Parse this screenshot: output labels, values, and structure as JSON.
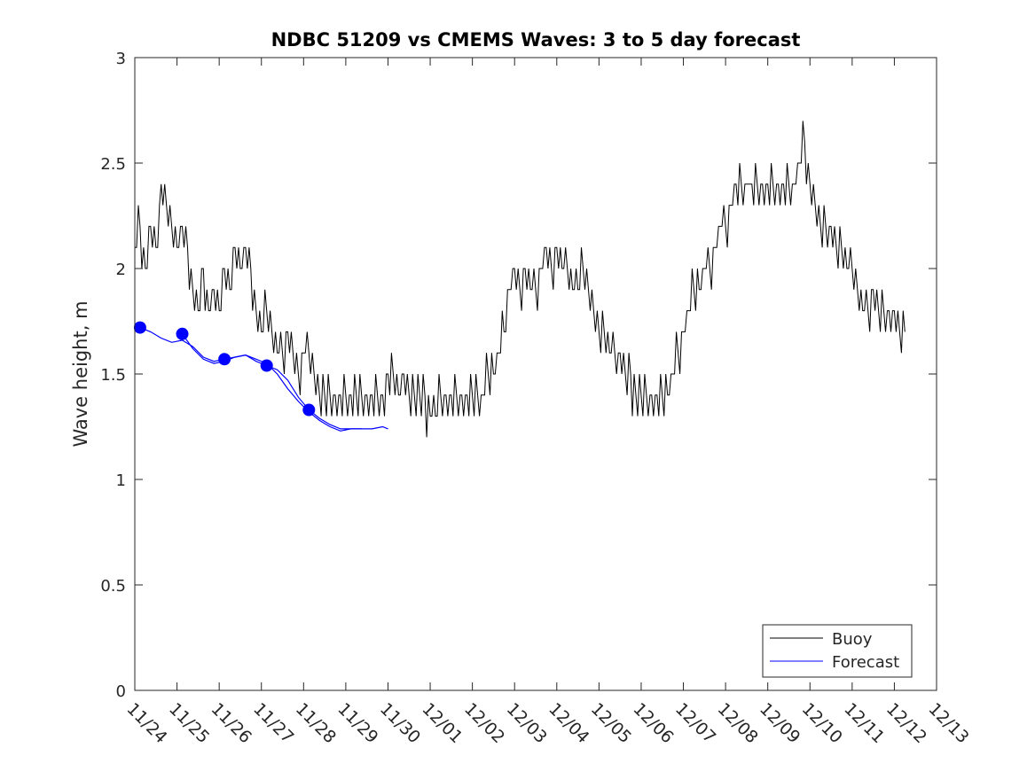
{
  "chart_data": {
    "type": "line",
    "title": "NDBC 51209 vs CMEMS Waves: 3 to 5 day forecast",
    "xlabel": "",
    "ylabel": "Wave height, m",
    "xlim": [
      "2024-11-24",
      "2024-12-13"
    ],
    "ylim": [
      0,
      3
    ],
    "x_ticks": [
      "11/24",
      "11/25",
      "11/26",
      "11/27",
      "11/28",
      "11/29",
      "11/30",
      "12/01",
      "12/02",
      "12/03",
      "12/04",
      "12/05",
      "12/06",
      "12/07",
      "12/08",
      "12/09",
      "12/10",
      "12/11",
      "12/12",
      "12/13"
    ],
    "y_ticks": [
      "0",
      "0.5",
      "1",
      "1.5",
      "2",
      "2.5",
      "3"
    ],
    "grid": false,
    "legend_position": "bottom-right",
    "series": [
      {
        "name": "Buoy",
        "color": "#000000",
        "style": "line",
        "x": [
          "11/24 00:00",
          "11/24 03:00",
          "11/24 06:00",
          "11/24 09:00",
          "11/24 12:00",
          "11/24 15:00",
          "11/24 18:00",
          "11/24 21:00",
          "11/25 00:00",
          "11/25 03:00",
          "11/25 06:00",
          "11/25 09:00",
          "11/25 12:00",
          "11/25 15:00",
          "11/25 18:00",
          "11/25 21:00",
          "11/26 00:00",
          "11/26 03:00",
          "11/26 06:00",
          "11/26 09:00",
          "11/26 12:00",
          "11/26 15:00",
          "11/26 18:00",
          "11/26 21:00",
          "11/27 00:00",
          "11/27 03:00",
          "11/27 06:00",
          "11/27 09:00",
          "11/27 12:00",
          "11/27 15:00",
          "11/27 18:00",
          "11/27 21:00",
          "11/28 00:00",
          "11/28 03:00",
          "11/28 06:00",
          "11/28 09:00",
          "11/28 12:00",
          "11/28 15:00",
          "11/28 18:00",
          "11/28 21:00",
          "11/29 00:00",
          "11/29 03:00",
          "11/29 06:00",
          "11/29 09:00",
          "11/29 12:00",
          "11/29 15:00",
          "11/29 18:00",
          "11/29 21:00",
          "11/30 00:00",
          "11/30 03:00",
          "11/30 06:00",
          "11/30 09:00",
          "11/30 12:00",
          "11/30 15:00",
          "11/30 18:00",
          "11/30 21:00",
          "12/01 00:00",
          "12/01 03:00",
          "12/01 06:00",
          "12/01 09:00",
          "12/01 12:00",
          "12/01 15:00",
          "12/01 18:00",
          "12/01 21:00",
          "12/02 00:00",
          "12/02 03:00",
          "12/02 06:00",
          "12/02 09:00",
          "12/02 12:00",
          "12/02 15:00",
          "12/02 18:00",
          "12/02 21:00",
          "12/03 00:00",
          "12/03 03:00",
          "12/03 06:00",
          "12/03 09:00",
          "12/03 12:00",
          "12/03 15:00",
          "12/03 18:00",
          "12/03 21:00",
          "12/04 00:00",
          "12/04 03:00",
          "12/04 06:00",
          "12/04 09:00",
          "12/04 12:00",
          "12/04 15:00",
          "12/04 18:00",
          "12/04 21:00",
          "12/05 00:00",
          "12/05 03:00",
          "12/05 06:00",
          "12/05 09:00",
          "12/05 12:00",
          "12/05 15:00",
          "12/05 18:00",
          "12/05 21:00",
          "12/06 00:00",
          "12/06 03:00",
          "12/06 06:00",
          "12/06 09:00",
          "12/06 12:00",
          "12/06 15:00",
          "12/06 18:00",
          "12/06 21:00",
          "12/07 00:00",
          "12/07 03:00",
          "12/07 06:00",
          "12/07 09:00",
          "12/07 12:00",
          "12/07 15:00",
          "12/07 18:00",
          "12/07 21:00",
          "12/08 00:00",
          "12/08 03:00",
          "12/08 06:00",
          "12/08 09:00",
          "12/08 12:00",
          "12/08 15:00",
          "12/08 18:00",
          "12/08 21:00",
          "12/09 00:00",
          "12/09 03:00",
          "12/09 06:00",
          "12/09 09:00",
          "12/09 12:00",
          "12/09 15:00",
          "12/09 18:00",
          "12/09 21:00",
          "12/10 00:00",
          "12/10 03:00",
          "12/10 06:00",
          "12/10 09:00",
          "12/10 12:00",
          "12/10 15:00",
          "12/10 18:00",
          "12/10 21:00",
          "12/11 00:00",
          "12/11 03:00",
          "12/11 06:00",
          "12/11 09:00",
          "12/11 12:00",
          "12/11 15:00",
          "12/11 18:00",
          "12/11 21:00",
          "12/12 00:00",
          "12/12 03:00",
          "12/12 06:00"
        ],
        "values": [
          2.1,
          2.2,
          2.0,
          2.2,
          2.1,
          2.4,
          2.3,
          2.2,
          2.1,
          2.2,
          2.1,
          1.9,
          1.8,
          2.0,
          1.8,
          1.9,
          1.8,
          2.0,
          1.9,
          2.1,
          2.0,
          2.1,
          2.0,
          1.8,
          1.7,
          1.8,
          1.7,
          1.6,
          1.6,
          1.7,
          1.6,
          1.5,
          1.6,
          1.6,
          1.5,
          1.4,
          1.4,
          1.4,
          1.35,
          1.4,
          1.35,
          1.4,
          1.4,
          1.35,
          1.35,
          1.4,
          1.4,
          1.35,
          1.45,
          1.5,
          1.4,
          1.45,
          1.4,
          1.4,
          1.4,
          1.35,
          1.3,
          1.3,
          1.4,
          1.35,
          1.4,
          1.35,
          1.4,
          1.35,
          1.4,
          1.4,
          1.35,
          1.5,
          1.5,
          1.6,
          1.7,
          1.9,
          2.0,
          1.9,
          2.0,
          1.9,
          1.9,
          2.0,
          2.1,
          2.0,
          2.1,
          2.0,
          2.0,
          1.9,
          1.9,
          2.0,
          1.9,
          1.8,
          1.7,
          1.7,
          1.6,
          1.6,
          1.55,
          1.5,
          1.45,
          1.4,
          1.4,
          1.35,
          1.35,
          1.35,
          1.4,
          1.4,
          1.5,
          1.6,
          1.7,
          1.8,
          1.9,
          1.9,
          2.0,
          2.0,
          2.1,
          2.2,
          2.2,
          2.3,
          2.35,
          2.4,
          2.4,
          2.4,
          2.35,
          2.35,
          2.35,
          2.4,
          2.35,
          2.35,
          2.35,
          2.4,
          2.5,
          2.6,
          2.4,
          2.3,
          2.2,
          2.2,
          2.15,
          2.1,
          2.1,
          2.0,
          2.0,
          1.9,
          1.8,
          1.8,
          1.85,
          1.8,
          1.75,
          1.75,
          1.75,
          1.7,
          1.7
        ]
      },
      {
        "name": "Forecast",
        "color": "#0000ff",
        "style": "line",
        "x": [
          "11/24 03:00",
          "11/24 09:00",
          "11/24 15:00",
          "11/24 21:00",
          "11/25 03:00",
          "11/25 09:00",
          "11/25 15:00",
          "11/25 21:00",
          "11/26 03:00",
          "11/26 09:00",
          "11/26 15:00",
          "11/26 21:00",
          "11/27 03:00",
          "11/27 09:00",
          "11/27 15:00",
          "11/27 21:00",
          "11/28 03:00",
          "11/28 09:00",
          "11/28 15:00",
          "11/28 21:00",
          "11/29 03:00",
          "11/29 09:00",
          "11/29 15:00",
          "11/29 21:00",
          "11/30 00:00"
        ],
        "values": [
          1.72,
          1.7,
          1.67,
          1.65,
          1.66,
          1.63,
          1.58,
          1.56,
          1.57,
          1.58,
          1.59,
          1.57,
          1.55,
          1.5,
          1.43,
          1.37,
          1.32,
          1.28,
          1.25,
          1.23,
          1.24,
          1.24,
          1.24,
          1.25,
          1.24
        ]
      },
      {
        "name": "",
        "color": "#0000ff",
        "style": "line",
        "x": [
          "11/25 03:00",
          "11/25 09:00",
          "11/25 15:00",
          "11/25 21:00",
          "11/26 03:00",
          "11/26 09:00",
          "11/26 15:00",
          "11/26 21:00",
          "11/27 03:00",
          "11/27 09:00",
          "11/27 15:00",
          "11/27 21:00",
          "11/28 03:00",
          "11/28 09:00",
          "11/28 15:00",
          "11/28 21:00",
          "11/29 03:00",
          "11/29 09:00"
        ],
        "values": [
          1.69,
          1.62,
          1.57,
          1.55,
          1.56,
          1.58,
          1.59,
          1.56,
          1.54,
          1.52,
          1.47,
          1.39,
          1.33,
          1.29,
          1.26,
          1.24,
          1.24,
          1.24
        ]
      },
      {
        "name": "",
        "color": "#0000ff",
        "style": "markers",
        "x": [
          "11/24 03:00",
          "11/25 03:00",
          "11/26 03:00",
          "11/27 03:00",
          "11/28 03:00"
        ],
        "values": [
          1.72,
          1.69,
          1.57,
          1.54,
          1.33
        ]
      }
    ]
  }
}
